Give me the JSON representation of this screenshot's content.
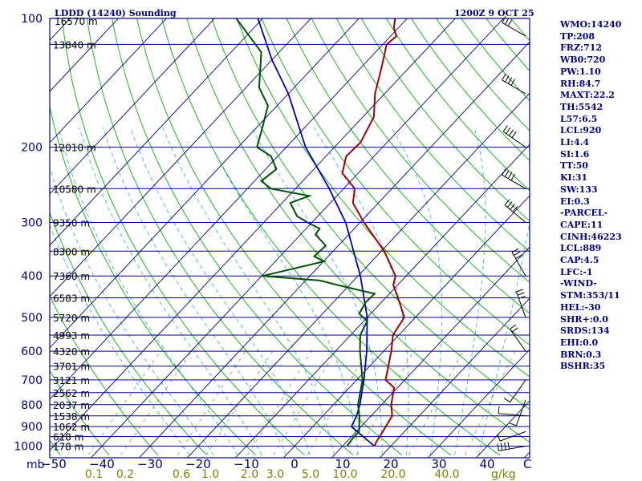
{
  "chart_data": {
    "type": "skew-t",
    "title": "LDDD (14240) Sounding",
    "valid_time": "1200Z  9 OCT 25",
    "pressure_axis_label": "mb",
    "pressure_ticks": [
      100,
      200,
      300,
      400,
      500,
      600,
      700,
      800,
      900,
      1000
    ],
    "pressure_range": [
      100,
      1000
    ],
    "temperature_ticks": [
      -50,
      -40,
      -30,
      -20,
      -10,
      0,
      10,
      20,
      30,
      40
    ],
    "temperature_unit_label": "C",
    "mixing_ratio_ticks": [
      "0.1",
      "0.2",
      "0.6",
      "1.0",
      "2.0",
      "3.0",
      "5.0",
      "10.0",
      "20.0",
      "40.0"
    ],
    "mixing_ratio_unit_label": "g/kg",
    "height_levels": [
      {
        "p": 115,
        "label": "13840 m"
      },
      {
        "p": 200,
        "label": "12010 m"
      },
      {
        "p": 250,
        "label": "10580 m"
      },
      {
        "p": 300,
        "label": "9350 m"
      },
      {
        "p": 350,
        "label": "8300 m"
      },
      {
        "p": 400,
        "label": "7360 m"
      },
      {
        "p": 450,
        "label": "6583 m"
      },
      {
        "p": 500,
        "label": "5720 m"
      },
      {
        "p": 550,
        "label": "4993 m"
      },
      {
        "p": 600,
        "label": "4320 m"
      },
      {
        "p": 650,
        "label": "3701 m"
      },
      {
        "p": 700,
        "label": "3121 m"
      },
      {
        "p": 750,
        "label": "2562 m"
      },
      {
        "p": 800,
        "label": "2037 m"
      },
      {
        "p": 850,
        "label": "1538 m"
      },
      {
        "p": 900,
        "label": "1062 m"
      },
      {
        "p": 950,
        "label": "618 m"
      },
      {
        "p": 1000,
        "label": "178 m"
      }
    ],
    "top_height_label": "16570 m",
    "temperature_profile": [
      {
        "p": 1000,
        "t": 16.6
      },
      {
        "p": 980,
        "t": 16.2
      },
      {
        "p": 925,
        "t": 15.5
      },
      {
        "p": 850,
        "t": 14.4
      },
      {
        "p": 800,
        "t": 12.0
      },
      {
        "p": 730,
        "t": 9.3
      },
      {
        "p": 700,
        "t": 6.0
      },
      {
        "p": 600,
        "t": 1.6
      },
      {
        "p": 550,
        "t": -1.2
      },
      {
        "p": 500,
        "t": -2.3
      },
      {
        "p": 470,
        "t": -5.3
      },
      {
        "p": 420,
        "t": -10.9
      },
      {
        "p": 400,
        "t": -12.2
      },
      {
        "p": 350,
        "t": -19.4
      },
      {
        "p": 300,
        "t": -29.2
      },
      {
        "p": 270,
        "t": -35.3
      },
      {
        "p": 250,
        "t": -37.7
      },
      {
        "p": 230,
        "t": -43.3
      },
      {
        "p": 210,
        "t": -45.8
      },
      {
        "p": 195,
        "t": -45.5
      },
      {
        "p": 170,
        "t": -47.7
      },
      {
        "p": 150,
        "t": -52.0
      },
      {
        "p": 130,
        "t": -55.8
      },
      {
        "p": 115,
        "t": -59.2
      },
      {
        "p": 110,
        "t": -58.8
      },
      {
        "p": 105,
        "t": -61.0
      },
      {
        "p": 100,
        "t": -62.5
      }
    ],
    "dewpoint_profile": [
      {
        "p": 1000,
        "t": 10.9
      },
      {
        "p": 960,
        "t": 10.6
      },
      {
        "p": 925,
        "t": 10.6
      },
      {
        "p": 850,
        "t": 7.6
      },
      {
        "p": 800,
        "t": 5.1
      },
      {
        "p": 700,
        "t": 1.2
      },
      {
        "p": 600,
        "t": -4.9
      },
      {
        "p": 550,
        "t": -8.0
      },
      {
        "p": 510,
        "t": -9.3
      },
      {
        "p": 490,
        "t": -12.4
      },
      {
        "p": 460,
        "t": -13.3
      },
      {
        "p": 440,
        "t": -13.1
      },
      {
        "p": 430,
        "t": -17.8
      },
      {
        "p": 420,
        "t": -22.5
      },
      {
        "p": 410,
        "t": -27.0
      },
      {
        "p": 400,
        "t": -39.8
      },
      {
        "p": 370,
        "t": -29.9
      },
      {
        "p": 360,
        "t": -32.9
      },
      {
        "p": 340,
        "t": -32.6
      },
      {
        "p": 320,
        "t": -36.9
      },
      {
        "p": 310,
        "t": -37.2
      },
      {
        "p": 300,
        "t": -40.9
      },
      {
        "p": 290,
        "t": -44.3
      },
      {
        "p": 270,
        "t": -48.3
      },
      {
        "p": 260,
        "t": -45.7
      },
      {
        "p": 250,
        "t": -55.1
      },
      {
        "p": 240,
        "t": -58.6
      },
      {
        "p": 225,
        "t": -57.8
      },
      {
        "p": 210,
        "t": -61.4
      },
      {
        "p": 200,
        "t": -66.1
      },
      {
        "p": 180,
        "t": -68.8
      },
      {
        "p": 160,
        "t": -71.9
      },
      {
        "p": 145,
        "t": -77.3
      },
      {
        "p": 120,
        "t": -83.7
      },
      {
        "p": 100,
        "t": -95.5
      }
    ],
    "parcel_profile": [
      {
        "p": 1000,
        "t": 16.6
      },
      {
        "p": 900,
        "t": 8.0
      },
      {
        "p": 850,
        "t": 7.0
      },
      {
        "p": 800,
        "t": 5.5
      },
      {
        "p": 700,
        "t": 1.5
      },
      {
        "p": 600,
        "t": -3.5
      },
      {
        "p": 500,
        "t": -10.0
      },
      {
        "p": 400,
        "t": -19.5
      },
      {
        "p": 300,
        "t": -33.0
      },
      {
        "p": 250,
        "t": -43.0
      },
      {
        "p": 200,
        "t": -56.0
      },
      {
        "p": 150,
        "t": -70.0
      },
      {
        "p": 125,
        "t": -80.0
      },
      {
        "p": 100,
        "t": -91.0
      }
    ],
    "indices": [
      "WMO:14240",
      "TP:208",
      "FRZ:712",
      "WB0:720",
      "PW:1.10",
      "RH:84.7",
      "MAXT:22.2",
      "TH:5542",
      "L57:6.5",
      "LCL:920",
      "LI:4.4",
      "SI:1.6",
      "TT:50",
      "KI:31",
      "SW:133",
      "EI:0.3",
      "-PARCEL-",
      "CAPE:11",
      "CINH:46223",
      "LCL:889",
      "CAP:4.5",
      "LFC:-1",
      "-WIND-",
      "STM:353/11",
      "HEL:-30",
      "SHR+:0.0",
      "SRDS:134",
      "EHI:0.0",
      "BRN:0.3",
      "BSHR:35"
    ],
    "colors": {
      "frame": "#000080",
      "isobar": "#000080",
      "isotherm": "#000080",
      "dry_adiabat": "#00b400",
      "moist_adiabat": "#3cb4dc",
      "mixing_ratio": "#8c8c5a",
      "temperature": "#a00000",
      "dewpoint": "#005000",
      "parcel": "#0000b4",
      "wind": "#000000"
    }
  }
}
